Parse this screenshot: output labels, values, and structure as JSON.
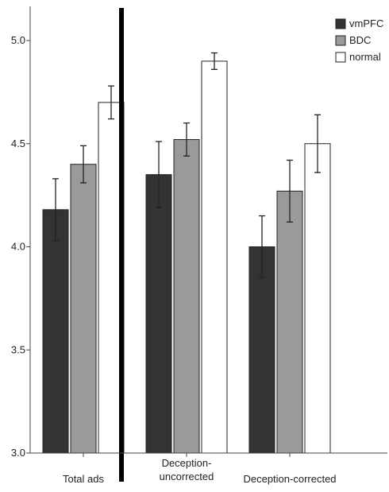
{
  "chart_data": {
    "type": "bar",
    "title": "",
    "xlabel": "",
    "ylabel": "",
    "ylim": [
      3.0,
      5.0
    ],
    "yticks": [
      "3.0",
      "3.5",
      "4.0",
      "4.5",
      "5.0"
    ],
    "categories": [
      "Total ads",
      "Deception-\nuncorrected",
      "Deception-corrected"
    ],
    "series": [
      {
        "name": "vmPFC",
        "color": "#333333",
        "values": [
          4.18,
          4.35,
          4.0
        ],
        "error": [
          0.15,
          0.16,
          0.15
        ]
      },
      {
        "name": "BDC",
        "color": "#9a9a9a",
        "values": [
          4.4,
          4.52,
          4.27
        ],
        "error": [
          0.09,
          0.08,
          0.15
        ]
      },
      {
        "name": "normal",
        "color": "#ffffff",
        "values": [
          4.7,
          4.9,
          4.5
        ],
        "error": [
          0.08,
          0.04,
          0.14
        ]
      }
    ],
    "legend": "top-right",
    "grid": false,
    "separator_after_category": 0
  }
}
